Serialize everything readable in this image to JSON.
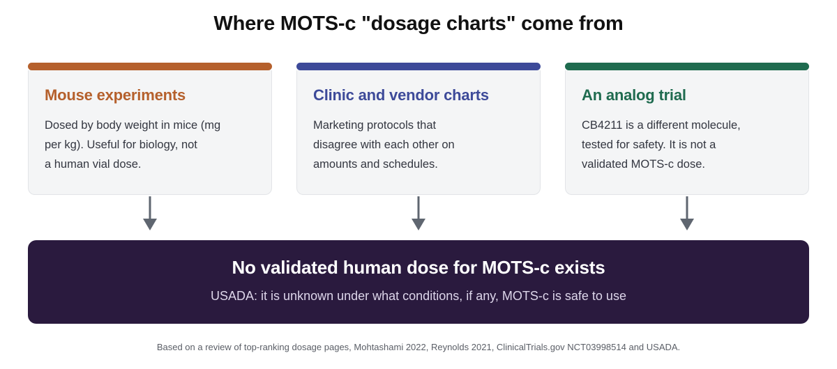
{
  "title": "Where MOTS-c \"dosage charts\" come from",
  "colors": {
    "card_1_accent": "#b5602c",
    "card_2_accent": "#3d4a99",
    "card_3_accent": "#1f6b4f",
    "arrow": "#5f6670",
    "conclusion_bg": "#2a1a3e"
  },
  "cards": [
    {
      "title": "Mouse experiments",
      "lines": [
        "Dosed by body weight in mice (mg",
        "per kg). Useful for biology, not",
        "a human vial dose."
      ]
    },
    {
      "title": "Clinic and vendor charts",
      "lines": [
        "Marketing protocols that",
        "disagree with each other on",
        "amounts and schedules."
      ]
    },
    {
      "title": "An analog trial",
      "lines": [
        "CB4211 is a different molecule,",
        "tested for safety. It is not a",
        "validated MOTS-c dose."
      ]
    }
  ],
  "conclusion": {
    "title": "No validated human dose for MOTS-c exists",
    "subtitle": "USADA: it is unknown under what conditions, if any, MOTS-c is safe to use"
  },
  "footnote": "Based on a review of top-ranking dosage pages, Mohtashami 2022, Reynolds 2021, ClinicalTrials.gov NCT03998514 and USADA."
}
